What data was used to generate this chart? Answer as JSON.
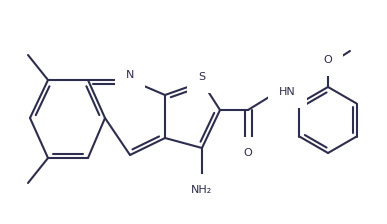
{
  "bg_color": "#ffffff",
  "line_color": "#2d2d4e",
  "line_width": 1.5,
  "font_size": 8.0,
  "figsize": [
    3.87,
    2.24
  ],
  "dpi": 100,
  "xlim": [
    0,
    387
  ],
  "ylim": [
    0,
    224
  ]
}
